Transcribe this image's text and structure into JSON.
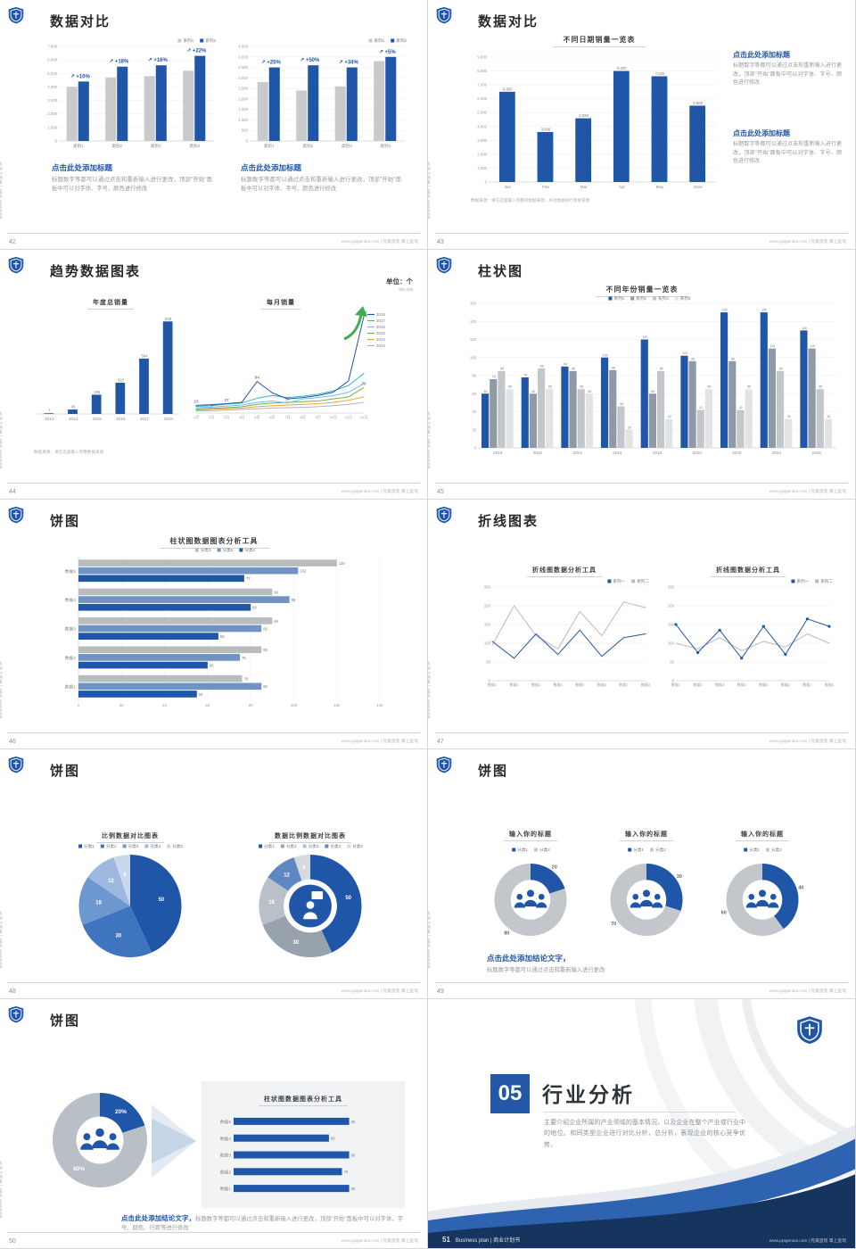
{
  "common": {
    "brand_vertical": "Business plan | 商业计划书",
    "site": "www.pptgenius.com | 完美呈现 掌上呈现",
    "accent_blue": "#2056a8",
    "navy": "#15355e",
    "gray_bar": "#c8cacc"
  },
  "slides": {
    "s42": {
      "page": "42",
      "title": "数据对比",
      "chartA": {
        "type": "vbar",
        "ymax": 7000,
        "ytickstep": 1000,
        "categories": [
          "类别1",
          "类别2",
          "类别3",
          "类别4"
        ],
        "series": [
          {
            "name": "系列1",
            "color": "#c8cacc",
            "values": [
              4000,
              4700,
              4800,
              5200
            ]
          },
          {
            "name": "系列2",
            "color": "#2056a8",
            "values": [
              4400,
              5500,
              5600,
              6300
            ]
          }
        ],
        "pct": [
          "+10%",
          "+18%",
          "+16%",
          "+22%"
        ],
        "legend": {
          "pos": "tr"
        }
      },
      "chartB": {
        "type": "vbar",
        "ymax": 4500,
        "ytickstep": 500,
        "categories": [
          "类别1",
          "类别2",
          "类别3",
          "类别4"
        ],
        "series": [
          {
            "name": "系列1",
            "color": "#c8cacc",
            "values": [
              2800,
              2400,
              2600,
              3800
            ]
          },
          {
            "name": "系列2",
            "color": "#2056a8",
            "values": [
              3500,
              3600,
              3500,
              4000
            ]
          }
        ],
        "pct": [
          "+25%",
          "+50%",
          "+34%",
          "+5%"
        ],
        "legend": {
          "pos": "tr"
        }
      },
      "blocks": [
        {
          "heading": "点击此处添加标题",
          "body": "标题数字等都可以通过点击和重新输入进行更改，顶部“开始”面板中可以对字体、字号、颜色进行修改"
        },
        {
          "heading": "点击此处添加标题",
          "body": "标题数字等都可以通过点击和重新输入进行更改，顶部“开始”面板中可以对字体、字号、颜色进行修改"
        }
      ]
    },
    "s43": {
      "page": "43",
      "title": "数据对比",
      "chart_title": "不同日期销量一览表",
      "chart": {
        "type": "vbar",
        "ymax": 9000,
        "ytickstep": 1000,
        "categories": [
          "Jan",
          "Feb",
          "Mar",
          "Apr",
          "May",
          "June"
        ],
        "series": [
          {
            "name": "销量",
            "color": "#2056a8",
            "values": [
              6500,
              3600,
              4590,
              8000,
              7620,
              5500
            ]
          }
        ],
        "vlabels": "fmt"
      },
      "note": "数据来源：请在这里输入完整的数据来源，并对数据进行简要说明",
      "blocks": [
        {
          "heading": "点击此处添加标题",
          "body": "标题数字等都可以通过点击和重新输入进行更改，顶部“开始”面板中可以对字体、字号、颜色进行修改"
        },
        {
          "heading": "点击此处添加标题",
          "body": "标题数字等都可以通过点击和重新输入进行更改，顶部“开始”面板中可以对字体、字号、颜色进行修改"
        }
      ]
    },
    "s44": {
      "page": "44",
      "title": "趋势数据图表",
      "unit": "单位：个",
      "unit_sub": "902,005",
      "chartA_title": "年度总销量",
      "chartB_title": "每月销量",
      "chartA": {
        "type": "vbar",
        "ymax": 1000,
        "noaxis": true,
        "vlabels": true,
        "categories": [
          "2013",
          "2014",
          "2015",
          "2016",
          "2017",
          "2018"
        ],
        "series": [
          {
            "name": "年度总销量",
            "color": "#2056a8",
            "values": [
              7,
              45,
              196,
              318,
              564,
              943
            ]
          }
        ]
      },
      "chartB": {
        "type": "line",
        "ymax": 300,
        "noaxis": true,
        "x": [
          "1月",
          "2月",
          "3月",
          "4月",
          "5月",
          "6月",
          "7月",
          "8月",
          "9月",
          "10月",
          "11月",
          "12月"
        ],
        "series": [
          {
            "name": "2018",
            "color": "#2056a8",
            "values": [
              23,
              25,
              28,
              32,
              94,
              60,
              42,
              46,
              52,
              62,
              96,
              287
            ]
          },
          {
            "name": "2017",
            "color": "#35b1c9",
            "values": [
              20,
              22,
              27,
              30,
              44,
              52,
              46,
              50,
              56,
              66,
              82,
              118
            ]
          },
          {
            "name": "2016",
            "color": "#7cb5ec",
            "values": [
              16,
              18,
              21,
              24,
              32,
              36,
              30,
              42,
              46,
              52,
              62,
              88
            ]
          },
          {
            "name": "2015",
            "color": "#6cb33f",
            "values": [
              12,
              14,
              16,
              19,
              26,
              30,
              32,
              34,
              36,
              42,
              48,
              76
            ]
          },
          {
            "name": "2014",
            "color": "#f0a23c",
            "values": [
              9,
              11,
              13,
              15,
              19,
              22,
              24,
              26,
              28,
              32,
              38,
              48
            ]
          },
          {
            "name": "2013",
            "color": "#b0b4b8",
            "values": [
              6,
              7,
              9,
              11,
              13,
              15,
              16,
              17,
              19,
              22,
              26,
              32
            ]
          }
        ],
        "legend": {
          "pos": "right"
        },
        "plabels": [
          {
            "s": 0,
            "i": 0,
            "t": "23"
          },
          {
            "s": 0,
            "i": 4,
            "t": "94"
          },
          {
            "s": 0,
            "i": 11,
            "t": "287"
          },
          {
            "s": 3,
            "i": 11,
            "t": "76"
          },
          {
            "s": 1,
            "i": 2,
            "t": "27"
          },
          {
            "s": 5,
            "i": 1,
            "t": "7"
          },
          {
            "s": 2,
            "i": 6,
            "t": "30"
          }
        ]
      },
      "note": "数据来源：请在这里输入完整数据来源"
    },
    "s45": {
      "page": "45",
      "title": "柱状图",
      "chart_title": "不同年份销量一览表",
      "chart": {
        "type": "vbar",
        "ymax": 160,
        "ytickstep": 20,
        "vlabels": true,
        "legend": {
          "pos": "tc"
        },
        "categories": [
          "2010",
          "2012",
          "2014",
          "2016",
          "2018",
          "2020",
          "2022",
          "2024",
          "2026"
        ],
        "series": [
          {
            "name": "系列1",
            "color": "#2056a8",
            "values": [
              60,
              78,
              90,
              100,
              120,
              102,
              150,
              150,
              130
            ]
          },
          {
            "name": "系列2",
            "color": "#8f9aa6",
            "values": [
              76,
              60,
              85,
              86,
              60,
              96,
              96,
              110,
              110
            ]
          },
          {
            "name": "系列3",
            "color": "#c3c7cb",
            "values": [
              85,
              88,
              65,
              46,
              85,
              42,
              42,
              85,
              65
            ]
          },
          {
            "name": "系列4",
            "color": "#e1e3e5",
            "values": [
              65,
              65,
              60,
              20,
              32,
              65,
              65,
              32,
              32
            ]
          }
        ]
      }
    },
    "s46": {
      "page": "46",
      "title": "饼图",
      "chart_title": "柱状图数据图表分析工具",
      "chart": {
        "type": "hbar",
        "xmax": 140,
        "xtickstep": 20,
        "vlabels": true,
        "legend": {
          "pos": "tc"
        },
        "categories": [
          "数据5",
          "数据4",
          "数据3",
          "数据2",
          "数据1"
        ],
        "series": [
          {
            "name": "分类3",
            "color": "#b9bcbf",
            "values": [
              120,
              90,
              90,
              85,
              76
            ]
          },
          {
            "name": "分类2",
            "color": "#6f94c4",
            "values": [
              102,
              98,
              85,
              75,
              85
            ]
          },
          {
            "name": "分类1",
            "color": "#2056a8",
            "values": [
              77,
              80,
              65,
              60,
              55
            ]
          }
        ]
      }
    },
    "s47": {
      "page": "47",
      "title": "折线图表",
      "chartA_title": "折线图数据分析工具",
      "chartB_title": "折线图数据分析工具",
      "chartA": {
        "type": "line",
        "ymax": 250,
        "ytickstep": 50,
        "x": [
          "数据1",
          "数据2",
          "数据3",
          "数据4",
          "数据5",
          "数据6",
          "数据7",
          "数据8"
        ],
        "series": [
          {
            "name": "系列一",
            "color": "#2056a8",
            "values": [
              105,
              60,
              125,
              70,
              135,
              65,
              115,
              125
            ]
          },
          {
            "name": "系列二",
            "color": "#b7babd",
            "values": [
              95,
              200,
              120,
              85,
              185,
              120,
              210,
              195
            ]
          }
        ],
        "legend": {
          "pos": "tr"
        }
      },
      "chartB": {
        "type": "line",
        "ymax": 250,
        "ytickstep": 50,
        "x": [
          "数据1",
          "数据2",
          "数据3",
          "数据4",
          "数据5",
          "数据6",
          "数据7",
          "数据8"
        ],
        "series": [
          {
            "name": "系列一",
            "color": "#2056a8",
            "dots": true,
            "values": [
              150,
              75,
              135,
              60,
              145,
              70,
              165,
              145
            ]
          },
          {
            "name": "系列二",
            "color": "#b7babd",
            "values": [
              100,
              85,
              115,
              80,
              105,
              90,
              125,
              100
            ]
          }
        ],
        "legend": {
          "pos": "tr"
        }
      }
    },
    "s48": {
      "page": "48",
      "title": "饼图",
      "chartA_title": "比例数据对比图表",
      "chartB_title": "数据比例数据对比图表",
      "pieA": {
        "type": "pie",
        "values": [
          50,
          30,
          18,
          12,
          6
        ],
        "labels": [
          "50",
          "30",
          "18",
          "12",
          "6"
        ],
        "colors": [
          "#2056a8",
          "#3f74bf",
          "#6d97cf",
          "#9db9df",
          "#c9d7ec"
        ],
        "label_pos": "in",
        "label_fs": 6,
        "legend_names": [
          "分类1",
          "分类2",
          "分类3",
          "分类4",
          "分类5"
        ]
      },
      "pieB": {
        "type": "pie",
        "inner": 0.52,
        "values": [
          50,
          30,
          18,
          12,
          6
        ],
        "labels": [
          "50",
          "30",
          "18",
          "12",
          "6"
        ],
        "colors": [
          "#2056a8",
          "#98a2ac",
          "#b9c0c7",
          "#5f87c2",
          "#d5dae0"
        ],
        "label_pos": "ring",
        "label_fs": 6,
        "icon": "person-bubble",
        "legend_names": [
          "分类1",
          "分类2",
          "分类3",
          "分类4",
          "分类5"
        ]
      }
    },
    "s49": {
      "page": "49",
      "title": "饼图",
      "cards": [
        {
          "title": "输入你的标题",
          "donut": {
            "type": "pie",
            "inner": 0.55,
            "values": [
              20,
              80
            ],
            "labels": [
              "20",
              "80"
            ],
            "colors": [
              "#2056a8",
              "#c3c7cb"
            ],
            "label_pos": "out",
            "label_fs": 5.5,
            "icon": "people",
            "legend_names": [
              "分类1",
              "分类2"
            ]
          }
        },
        {
          "title": "输入你的标题",
          "donut": {
            "type": "pie",
            "inner": 0.55,
            "values": [
              30,
              70
            ],
            "labels": [
              "30",
              "70"
            ],
            "colors": [
              "#2056a8",
              "#c3c7cb"
            ],
            "label_pos": "out",
            "label_fs": 5.5,
            "icon": "people",
            "legend_names": [
              "分类1",
              "分类2"
            ]
          }
        },
        {
          "title": "输入你的标题",
          "donut": {
            "type": "pie",
            "inner": 0.55,
            "values": [
              40,
              60
            ],
            "labels": [
              "40",
              "60"
            ],
            "colors": [
              "#2056a8",
              "#c3c7cb"
            ],
            "label_pos": "out",
            "label_fs": 5.5,
            "icon": "people",
            "legend_names": [
              "分类1",
              "分类2"
            ]
          }
        }
      ],
      "conclusion_head": "点击此处添加结论文字，",
      "conclusion_body": "标题数字等都可以通过点击和重新输入进行更改"
    },
    "s50": {
      "page": "50",
      "title": "饼图",
      "panel_title": "柱状图数据图表分析工具",
      "donut": {
        "type": "pie",
        "inner": 0.5,
        "values": [
          20,
          80
        ],
        "labels": [
          "20%",
          "80%"
        ],
        "colors": [
          "#2056a8",
          "#b9bfc6"
        ],
        "label_pos": "ring",
        "label_fs": 6.5,
        "icon": "people"
      },
      "panel": {
        "type": "hbar",
        "xmax": 100,
        "noaxis": true,
        "vlabels": true,
        "mr": 18,
        "categories": [
          "数据5",
          "数据4",
          "数据3",
          "数据2",
          "数据1"
        ],
        "series": [
          {
            "name": "数据",
            "color": "#2056a8",
            "values": [
              80,
              66,
              80,
              75,
              80
            ]
          }
        ]
      },
      "conclusion_head": "点击此处添加结论文字，",
      "conclusion_body": "标题数字等都可以通过点击和重新输入进行更改，顶部“开始”面板中可以对字体、字号、颜色、行距等进行修改"
    },
    "s51": {
      "page": "51",
      "number": "05",
      "title": "行业分析",
      "body": "主要介绍企业所属的产业领域的基本情况，以及企业在整个产业或行业中的地位。和同类型企业进行对比分析，总分析，表现企业的核心竞争优势。"
    }
  }
}
